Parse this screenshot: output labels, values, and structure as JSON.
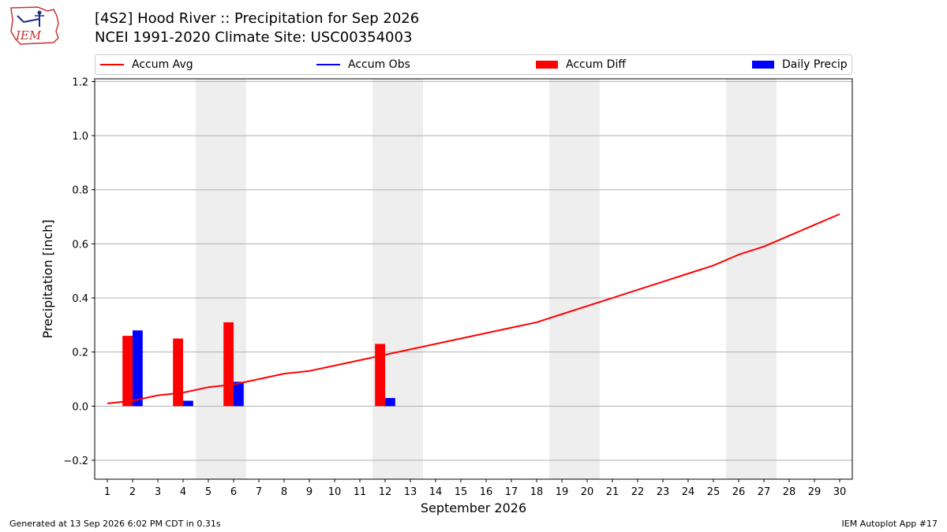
{
  "header": {
    "logo_text": "IEM",
    "title": "[4S2] Hood River :: Precipitation for Sep 2026",
    "subtitle": "NCEI 1991-2020 Climate Site: USC00354003"
  },
  "legend": {
    "items": [
      {
        "label": "Accum Avg",
        "kind": "line",
        "color": "#ff0000"
      },
      {
        "label": "Accum Obs",
        "kind": "line",
        "color": "#0000ff"
      },
      {
        "label": "Accum Diff",
        "kind": "patch",
        "color": "#ff0000"
      },
      {
        "label": "Daily Precip",
        "kind": "patch",
        "color": "#0000ff"
      }
    ]
  },
  "chart_data": {
    "type": "bar",
    "title": "[4S2] Hood River :: Precipitation for Sep 2026",
    "xlabel": "September 2026",
    "ylabel": "Precipitation [inch]",
    "xlim": [
      0.5,
      30.5
    ],
    "ylim": [
      -0.27,
      1.21
    ],
    "xticks": [
      1,
      2,
      3,
      4,
      5,
      6,
      7,
      8,
      9,
      10,
      11,
      12,
      13,
      14,
      15,
      16,
      17,
      18,
      19,
      20,
      21,
      22,
      23,
      24,
      25,
      26,
      27,
      28,
      29,
      30
    ],
    "yticks": [
      -0.2,
      0.0,
      0.2,
      0.4,
      0.6,
      0.8,
      1.0,
      1.2
    ],
    "ytick_labels": [
      "−0.2",
      "0.0",
      "0.2",
      "0.4",
      "0.6",
      "0.8",
      "1.0",
      "1.2"
    ],
    "grid": "horizontal",
    "weekend_shading": [
      [
        5,
        6
      ],
      [
        12,
        13
      ],
      [
        19,
        20
      ],
      [
        26,
        27
      ]
    ],
    "shade_color": "#eeeeee",
    "series": [
      {
        "name": "Accum Avg",
        "kind": "line",
        "color": "#ff0000",
        "x": [
          1,
          2,
          3,
          4,
          5,
          6,
          7,
          8,
          9,
          10,
          11,
          12,
          13,
          14,
          15,
          16,
          17,
          18,
          19,
          20,
          21,
          22,
          23,
          24,
          25,
          26,
          27,
          28,
          29,
          30
        ],
        "values": [
          0.01,
          0.02,
          0.04,
          0.05,
          0.07,
          0.08,
          0.1,
          0.12,
          0.13,
          0.15,
          0.17,
          0.19,
          0.21,
          0.23,
          0.25,
          0.27,
          0.29,
          0.31,
          0.34,
          0.37,
          0.4,
          0.43,
          0.46,
          0.49,
          0.52,
          0.56,
          0.59,
          0.63,
          0.67,
          0.71
        ]
      },
      {
        "name": "Accum Obs",
        "kind": "line",
        "color": "#0000ff",
        "x": [],
        "values": []
      },
      {
        "name": "Accum Diff",
        "kind": "bar",
        "color": "#ff0000",
        "x": [
          2,
          4,
          6,
          12
        ],
        "values": [
          0.26,
          0.25,
          0.31,
          0.23
        ]
      },
      {
        "name": "Daily Precip",
        "kind": "bar",
        "color": "#0000ff",
        "x": [
          2,
          4,
          6,
          12
        ],
        "values": [
          0.28,
          0.02,
          0.09,
          0.03
        ]
      }
    ]
  },
  "footer": {
    "left": "Generated at 13 Sep 2026 6:02 PM CDT in 0.31s",
    "right": "IEM Autoplot App #17"
  }
}
